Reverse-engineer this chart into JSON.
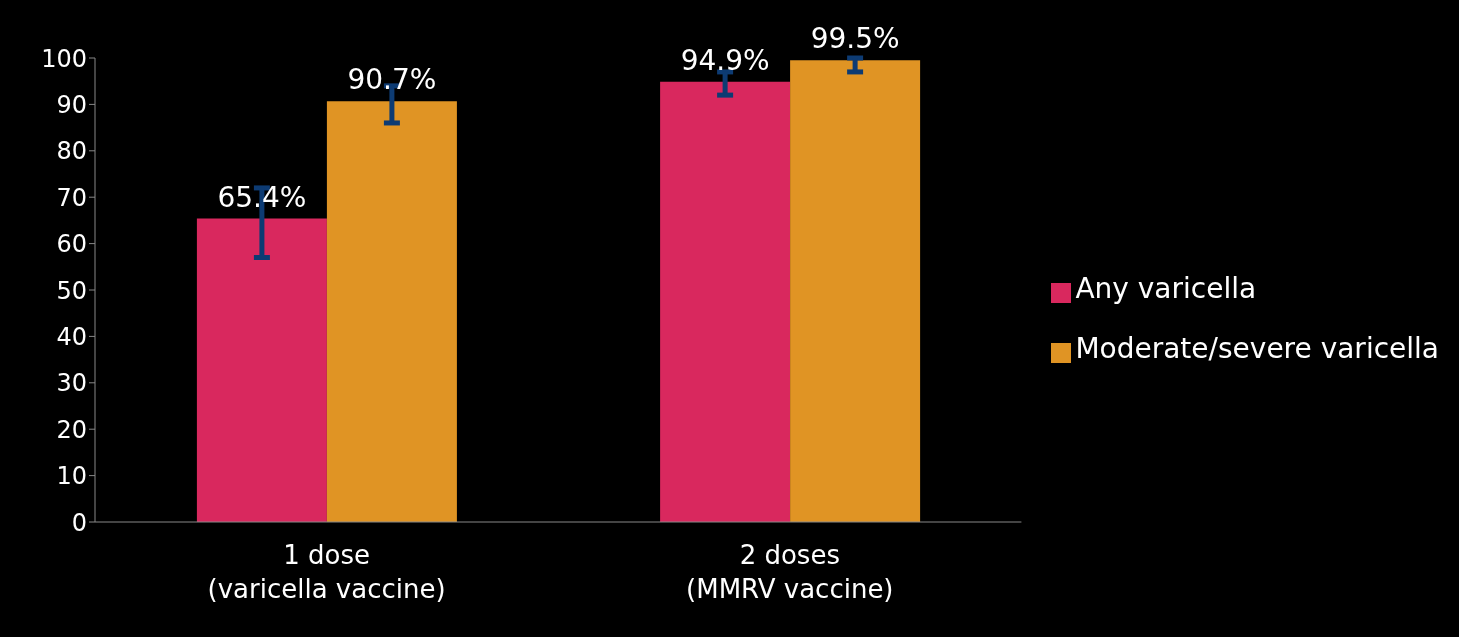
{
  "chart_data": {
    "type": "bar",
    "categories": [
      "1 dose\n(varicella vaccine)",
      "2 doses\n(MMRV vaccine)"
    ],
    "series": [
      {
        "name": "Any varicella",
        "color": "#d9285e",
        "values": [
          65.4,
          94.9
        ],
        "errors": [
          [
            57,
            72
          ],
          [
            92,
            97
          ]
        ],
        "value_labels": [
          "65.4%",
          "94.9%"
        ]
      },
      {
        "name": "Moderate/severe varicella",
        "color": "#e09424",
        "values": [
          90.7,
          99.5
        ],
        "errors": [
          [
            86,
            94
          ],
          [
            97,
            100
          ]
        ],
        "value_labels": [
          "90.7%",
          "99.5%"
        ]
      }
    ],
    "ylim": [
      0,
      100
    ],
    "yticks": [
      0,
      10,
      20,
      30,
      40,
      50,
      60,
      70,
      80,
      90,
      100
    ],
    "grid": false,
    "legend": "right"
  }
}
